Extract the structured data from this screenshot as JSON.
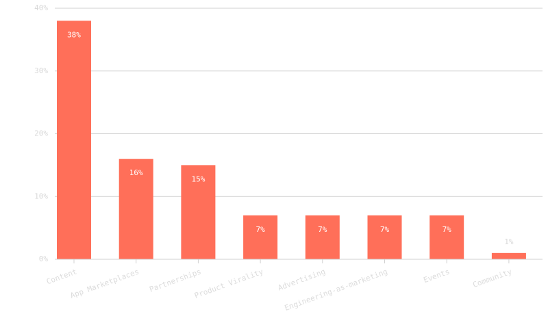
{
  "chart_data": {
    "type": "bar",
    "categories": [
      "Content",
      "App Marketplaces",
      "Partnerships",
      "Product Virality",
      "Advertising",
      "Engineering-as-marketing",
      "Events",
      "Community"
    ],
    "values": [
      38,
      16,
      15,
      7,
      7,
      7,
      7,
      1
    ],
    "value_labels": [
      "38%",
      "16%",
      "15%",
      "7%",
      "7%",
      "7%",
      "7%",
      "1%"
    ],
    "color": "#ff6f59",
    "ylim": [
      0,
      40
    ],
    "yticks": [
      {
        "value": 0,
        "label": "0%"
      },
      {
        "value": 10,
        "label": "10%"
      },
      {
        "value": 20,
        "label": "20%"
      },
      {
        "value": 30,
        "label": "30%"
      },
      {
        "value": 40,
        "label": "40%"
      }
    ],
    "grid": true
  }
}
